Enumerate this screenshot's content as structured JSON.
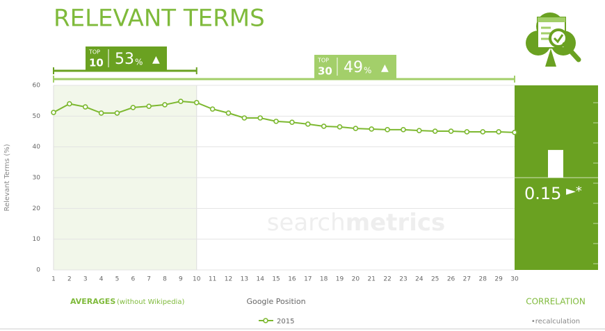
{
  "chart_data": {
    "type": "line",
    "title": "RELEVANT TERMS",
    "y_label": "Relevant Terms (%)",
    "x_label": "Google Position",
    "x": [
      1,
      2,
      3,
      4,
      5,
      6,
      7,
      8,
      9,
      10,
      11,
      12,
      13,
      14,
      15,
      16,
      17,
      18,
      19,
      20,
      21,
      22,
      23,
      24,
      25,
      26,
      27,
      28,
      29,
      30
    ],
    "xlim": [
      1,
      30
    ],
    "series": [
      {
        "name": "2015",
        "color": "#7cb82f",
        "values": [
          51.2,
          54,
          53,
          51,
          51,
          52.8,
          53.2,
          53.7,
          54.8,
          54.4,
          52.3,
          51,
          49.4,
          49.4,
          48.3,
          48,
          47.4,
          46.7,
          46.5,
          46,
          45.8,
          45.6,
          45.6,
          45.3,
          45.1,
          45.1,
          44.9,
          44.9,
          44.9,
          44.7
        ]
      }
    ],
    "ylim": [
      0,
      60
    ],
    "yticks": [
      0,
      10,
      20,
      30,
      40,
      50,
      60
    ],
    "grid": true,
    "badges": [
      {
        "top": "TOP",
        "rank": 10,
        "value": 53,
        "unit": "%",
        "arrow": "▲",
        "color": "#6aa121"
      },
      {
        "top": "TOP",
        "rank": 30,
        "value": 49,
        "unit": "%",
        "arrow": "▲",
        "color": "#a3cf6a"
      }
    ],
    "averages_label": "AVERAGES",
    "averages_note": "(without Wikipedia)",
    "correlation_label": "CORRELATION",
    "correlation": {
      "value": 0.15,
      "lim": [
        -0.5,
        0.5
      ],
      "marker": "►*"
    },
    "footnote": "•recalculation",
    "watermark": [
      "search",
      "metrics"
    ]
  }
}
